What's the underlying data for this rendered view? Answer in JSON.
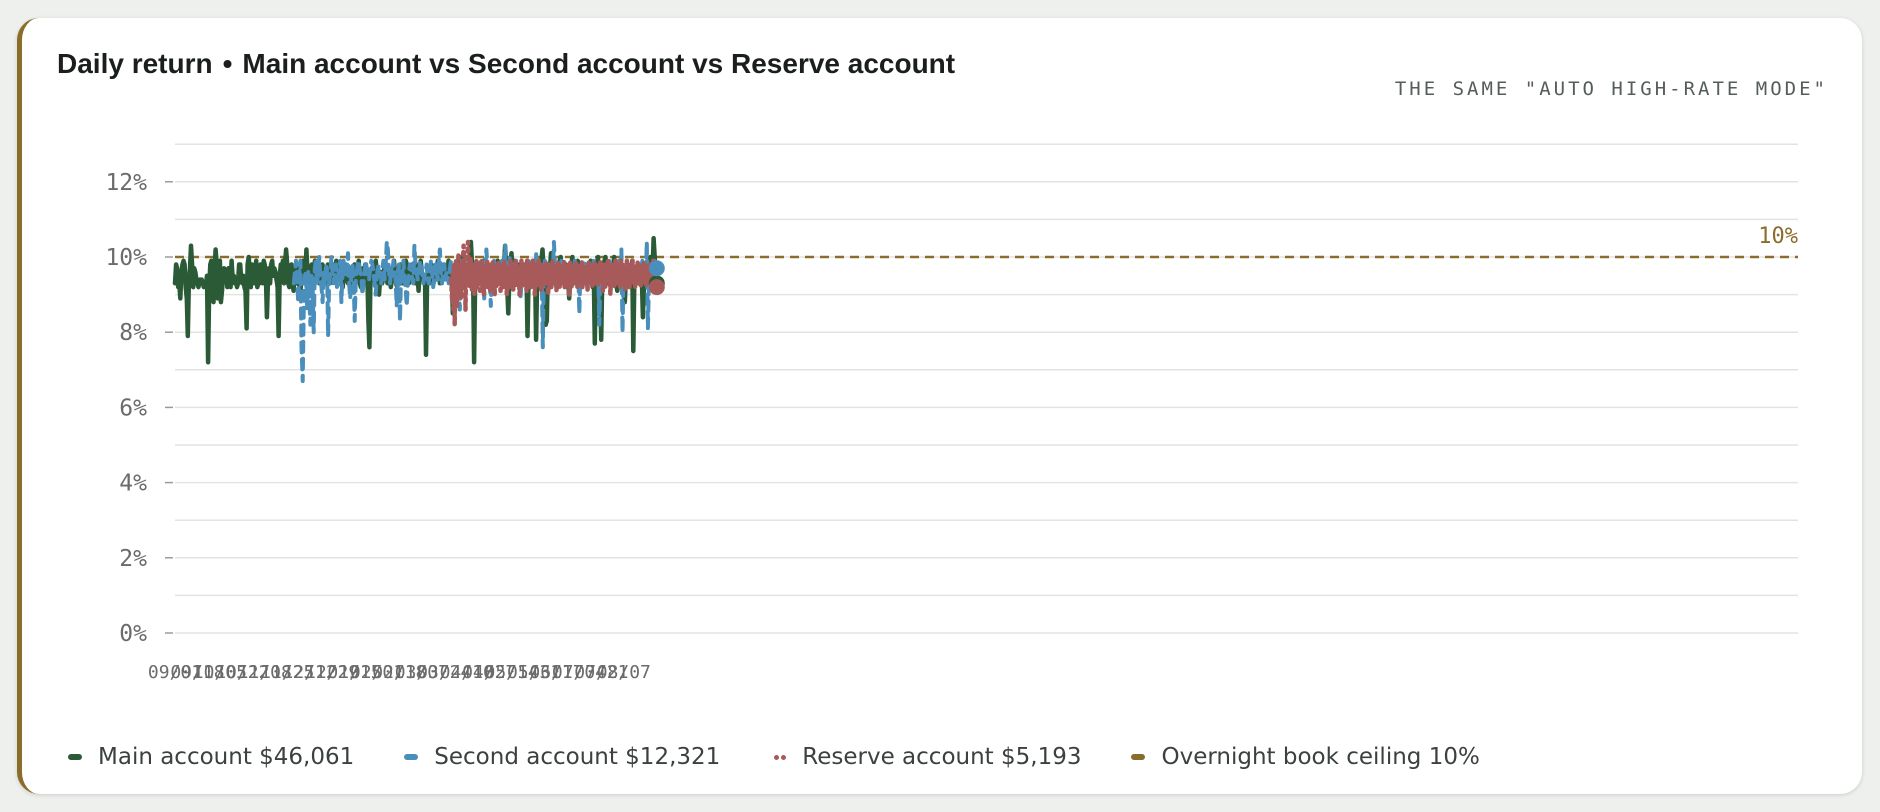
{
  "header": {
    "title": "Daily return",
    "separator": "•",
    "comparison": "Main account vs Second account vs Reserve account",
    "tag": "THE SAME \"AUTO HIGH-RATE MODE\""
  },
  "legend": {
    "items": [
      {
        "label": "Main account $46,061",
        "color": "#2b5a36"
      },
      {
        "label": "Second account $12,321",
        "color": "#4a8fbc"
      },
      {
        "label": "Reserve account $5,193",
        "color": "#a85a5a"
      },
      {
        "label": "Overnight book ceiling 10%",
        "color": "#8a6d2a"
      }
    ]
  },
  "colors": {
    "main": "#2b5a36",
    "second": "#4a8fbc",
    "reserve": "#a85a5a",
    "ceiling": "#8a6d2a",
    "grid": "#e2e4e2",
    "axis_text": "#6b6b6b"
  },
  "chart_data": {
    "type": "line",
    "title": "Daily return • Main account vs Second account vs Reserve account",
    "x_tick_labels": [
      "09/01",
      "09/18",
      "10/05",
      "10/22",
      "11/08",
      "11/25",
      "12/12",
      "12/29",
      "01/15",
      "02/01",
      "02/18",
      "03/07",
      "03/24",
      "04/10",
      "04/27",
      "05/14",
      "05/31",
      "06/17",
      "07/04",
      "07/21",
      "08/07"
    ],
    "y_tick_labels": [
      "0%",
      "2%",
      "4%",
      "6%",
      "8%",
      "10%",
      "12%"
    ],
    "ylim": [
      0,
      13
    ],
    "y_unit": "%",
    "grid": true,
    "legend_position": "bottom",
    "ceiling": {
      "name": "Overnight book ceiling 10%",
      "value": 10,
      "label": "10%"
    },
    "series": [
      {
        "name": "Main account $46,061",
        "start_date": "09/01",
        "values": [
          9.3,
          9.8,
          9.7,
          9.2,
          9.3,
          8.9,
          9.6,
          9.8,
          9.9,
          9.8,
          9.2,
          8.9,
          7.9,
          9.4,
          9.7,
          10.3,
          9.8,
          9.2,
          9.7,
          9.6,
          9.4,
          9.3,
          9.2,
          9.4,
          9.4,
          9.4,
          9.3,
          9.2,
          9.3,
          9.3,
          9.5,
          7.2,
          9.2,
          9.8,
          9.9,
          9.2,
          8.8,
          9.6,
          10.2,
          9.8,
          8.9,
          9.4,
          9.9,
          8.8,
          9.1,
          9.5,
          9.7,
          9.4,
          9.6,
          9.2,
          9.7,
          9.6,
          9.2,
          9.9,
          9.4,
          9.5,
          9.3,
          9.4,
          9.2,
          9.3,
          9.8,
          9.8,
          9.4,
          9.3,
          9.5,
          9.2,
          9.1,
          8.1,
          9.8,
          10.0,
          9.6,
          9.2,
          9.8,
          9.6,
          9.3,
          9.6,
          9.9,
          9.2,
          9.3,
          9.3,
          9.8,
          9.7,
          9.3,
          9.9,
          9.8,
          9.6,
          8.4,
          9.3,
          9.7,
          9.3,
          9.8,
          9.9,
          9.5,
          9.7,
          9.6,
          9.4,
          9.2,
          7.9,
          9.5,
          9.8,
          9.6,
          9.9,
          9.3,
          9.8,
          10.2,
          9.8,
          9.3,
          9.2,
          9.6,
          9.8,
          9.3,
          9.1,
          9.7,
          9.5,
          9.3,
          9.7,
          9.4,
          9.0,
          9.3,
          9.8,
          9.9,
          9.8,
          9.4,
          10.2,
          9.6,
          9.0,
          9.7,
          9.3,
          9.8,
          9.6,
          9.2,
          9.9,
          9.6,
          9.5,
          9.7,
          9.3,
          9.4,
          9.6,
          9.8,
          9.7,
          9.5,
          9.3,
          9.6,
          9.8,
          9.4,
          9.3,
          9.7,
          9.5,
          9.6,
          9.8,
          9.7,
          9.9,
          9.6,
          9.4,
          9.7,
          9.8,
          9.6,
          9.2,
          9.5,
          9.7,
          9.8,
          9.4,
          9.3,
          9.6,
          9.7,
          9.2,
          9.3,
          9.5,
          9.8,
          9.6,
          9.4,
          9.7,
          9.9,
          9.3,
          9.2,
          9.5,
          9.7,
          9.4,
          9.8,
          9.6,
          9.6,
          8.3,
          7.6,
          9.5,
          9.7,
          9.4,
          9.6,
          9.8,
          9.9,
          9.5,
          9.2,
          9.0,
          9.4,
          9.6,
          9.3,
          9.5,
          9.7,
          9.8,
          9.4,
          9.3,
          9.6,
          9.7,
          9.2,
          9.4,
          9.6,
          9.9,
          9.5,
          9.3,
          9.2,
          9.6,
          9.4,
          9.8,
          9.7,
          9.3,
          9.4,
          9.6,
          9.9,
          9.8,
          9.5,
          9.3,
          9.4,
          9.7,
          9.8,
          9.6,
          9.4,
          9.3,
          9.8,
          9.5,
          9.1,
          9.7,
          9.9,
          9.6,
          9.4,
          9.3,
          9.5,
          7.4,
          9.4,
          9.7,
          9.3,
          9.6,
          9.8,
          9.5,
          9.3,
          9.7,
          9.4,
          9.6,
          9.9,
          9.8,
          9.3,
          9.6,
          9.5,
          9.4,
          9.8,
          9.7,
          9.6,
          9.4,
          9.9,
          9.5,
          9.3,
          9.7,
          8.5,
          9.5,
          9.8,
          9.6,
          9.4,
          9.3,
          9.2,
          9.9,
          10.0,
          9.7,
          9.5,
          9.4,
          9.6,
          9.8,
          9.4,
          9.6,
          9.9,
          10.4,
          9.8,
          9.6,
          7.2,
          9.5,
          9.8,
          9.7,
          9.6,
          9.4,
          9.3,
          9.5,
          9.8,
          9.9,
          9.6,
          9.4,
          9.7,
          9.5,
          9.3,
          9.4,
          9.6,
          9.8,
          9.5,
          9.3,
          9.4,
          9.6,
          9.9,
          9.8,
          9.7,
          9.5,
          9.6,
          9.3,
          9.7,
          10.3,
          9.8,
          9.2,
          8.5,
          9.5,
          9.8,
          10.1,
          9.4,
          9.6,
          9.9,
          9.5,
          9.3,
          9.7,
          9.8,
          9.6,
          9.4,
          9.5,
          9.7,
          9.8,
          9.3,
          9.6,
          7.9,
          9.5,
          9.8,
          9.2,
          9.6,
          9.9,
          9.4,
          9.7,
          7.8,
          9.5,
          9.4,
          9.8,
          9.6,
          9.9,
          10.2,
          9.7,
          9.5,
          8.2,
          8.3,
          9.6,
          9.8,
          9.7,
          10.1,
          9.9,
          10.0,
          9.7,
          9.5,
          9.8,
          9.4,
          9.6,
          9.9,
          10.0,
          9.7,
          9.5,
          9.3,
          9.6,
          9.8,
          9.7,
          9.4,
          8.9,
          9.5,
          9.8,
          10.0,
          9.6,
          9.3,
          9.4,
          9.7,
          9.9,
          9.8,
          9.5,
          9.6,
          9.3,
          9.7,
          9.5,
          9.4,
          9.6,
          9.8,
          9.7,
          9.5,
          9.9,
          9.3,
          9.2,
          9.5,
          7.7,
          9.6,
          9.8,
          10.0,
          9.4,
          9.2,
          7.8,
          9.5,
          9.7,
          9.9,
          10.0,
          9.6,
          9.3,
          9.5,
          9.8,
          9.7,
          9.4,
          9.6,
          10.0,
          9.5,
          9.3,
          9.1,
          9.4,
          9.6,
          9.8,
          9.5,
          9.7,
          9.3,
          8.8,
          9.4,
          9.6,
          9.8,
          9.7,
          9.5,
          9.4,
          9.9,
          7.5,
          9.5,
          9.7,
          9.6,
          9.3,
          9.8,
          9.4,
          9.6,
          9.5,
          8.4,
          9.3,
          9.6,
          9.8,
          9.4,
          9.7,
          9.9,
          10.0,
          9.6,
          9.5,
          10.5,
          10.0,
          9.3,
          9.3
        ]
      },
      {
        "name": "Second account $12,321",
        "start_date": "11/30",
        "values": [
          9.3,
          9.6,
          9.9,
          9.5,
          8.8,
          9.6,
          9.9,
          7.6,
          6.7,
          8.7,
          9.5,
          9.6,
          8.6,
          9.6,
          8.9,
          8.2,
          9.5,
          9.2,
          8.0,
          9.7,
          9.9,
          9.3,
          9.6,
          10.0,
          9.4,
          9.2,
          8.8,
          9.6,
          9.3,
          9.7,
          9.8,
          7.9,
          9.4,
          9.5,
          10.0,
          9.6,
          9.3,
          9.4,
          9.8,
          9.2,
          9.5,
          9.7,
          9.9,
          8.8,
          9.6,
          9.9,
          9.6,
          9.5,
          9.7,
          10.1,
          9.3,
          8.9,
          9.5,
          9.8,
          9.4,
          8.3,
          9.4,
          9.6,
          9.9,
          9.8,
          9.6,
          9.5,
          9.0,
          9.3,
          9.6,
          9.9,
          9.7,
          9.4,
          9.4,
          9.7,
          9.9,
          9.8,
          9.6,
          9.3,
          9.0,
          9.4,
          9.8,
          9.6,
          9.5,
          9.3,
          9.7,
          9.9,
          9.4,
          9.8,
          10.4,
          10.2,
          9.6,
          9.3,
          9.7,
          9.5,
          9.9,
          9.6,
          9.4,
          8.7,
          9.6,
          9.8,
          8.3,
          9.7,
          9.5,
          9.9,
          9.4,
          9.2,
          8.7,
          9.3,
          9.6,
          9.8,
          9.7,
          9.4,
          9.3,
          10.3,
          9.8,
          9.6,
          9.4,
          9.5,
          9.9,
          9.7,
          9.6,
          9.3,
          9.5,
          9.6,
          9.8,
          9.4,
          9.3,
          9.7,
          9.9,
          9.6,
          9.2,
          9.5,
          9.8,
          9.6,
          9.4,
          9.9,
          10.2,
          9.5,
          9.3,
          9.7,
          9.8,
          9.4,
          9.6,
          9.5,
          9.3,
          9.7,
          9.9,
          9.6,
          9.4,
          9.5,
          9.8,
          9.7,
          9.6,
          9.4,
          8.6,
          9.7,
          9.9,
          9.6,
          9.3,
          9.5,
          9.8,
          9.7,
          9.4,
          9.6,
          9.9,
          9.8,
          9.3,
          9.5,
          9.7,
          9.6,
          9.4,
          9.8,
          9.9,
          9.5,
          9.3,
          9.6,
          8.9,
          9.8,
          10.2,
          9.7,
          9.3,
          9.5,
          8.7,
          9.6,
          9.8,
          9.9,
          9.5,
          9.4,
          9.7,
          9.6,
          9.3,
          9.8,
          9.9,
          9.6,
          9.2,
          10.3,
          9.8,
          9.5,
          9.6,
          10.0,
          9.4,
          9.6,
          9.8,
          9.3,
          9.7,
          9.9,
          9.4,
          9.5,
          9.6,
          8.9,
          9.8,
          9.7,
          9.6,
          9.4,
          9.3,
          9.7,
          9.9,
          9.8,
          9.5,
          9.4,
          9.6,
          9.7,
          9.3,
          10.1,
          9.6,
          9.5,
          9.8,
          9.4,
          9.6,
          7.6,
          9.7,
          9.9,
          9.5,
          9.4,
          9.6,
          9.8,
          9.7,
          9.3,
          9.5,
          10.4,
          9.8,
          9.4,
          9.7,
          9.6,
          9.3,
          9.5,
          9.9,
          9.8,
          9.6,
          9.4,
          9.7,
          9.5,
          9.3,
          9.6,
          9.8,
          9.7,
          9.4,
          9.6,
          9.9,
          9.5,
          9.3,
          9.7,
          8.5,
          9.6,
          9.8,
          9.4,
          9.7,
          9.9,
          9.6,
          9.3,
          9.5,
          9.8,
          9.6,
          9.4,
          9.7,
          9.9,
          9.5,
          9.3,
          9.6,
          9.8,
          8.2,
          9.4,
          9.7,
          9.5,
          9.3,
          9.8,
          9.6,
          9.4,
          9.7,
          9.9,
          9.5,
          9.6,
          9.3,
          9.7,
          9.8,
          9.6,
          9.4,
          9.5,
          9.9,
          9.7,
          10.2,
          8.0,
          9.6,
          9.8,
          9.4,
          9.3,
          9.5,
          9.7,
          9.6,
          9.8,
          9.4,
          9.6,
          9.7,
          9.5,
          9.3,
          9.8,
          9.6,
          9.4,
          9.7,
          9.9,
          9.5,
          9.6,
          9.4,
          10.4,
          8.1,
          9.5,
          9.8,
          9.6,
          9.3,
          9.7,
          9.9,
          9.7,
          9.7
        ]
      },
      {
        "name": "Reserve account $5,193",
        "start_date": "03/29",
        "values": [
          9.4,
          9.2,
          8.8,
          9.6,
          8.6,
          9.8,
          8.2,
          9.5,
          9.9,
          9.3,
          8.7,
          9.6,
          10.1,
          9.4,
          9.0,
          9.7,
          8.9,
          9.8,
          9.3,
          9.9,
          10.3,
          9.5,
          9.8,
          8.6,
          9.7,
          9.3,
          9.9,
          10.4,
          9.6,
          9.2,
          9.5,
          10.0,
          9.4,
          9.1,
          9.8,
          9.6,
          9.3,
          9.0,
          9.7,
          9.4,
          9.9,
          9.2,
          9.5,
          9.8,
          9.3,
          9.6,
          9.1,
          9.7,
          9.9,
          9.4,
          9.2,
          9.6,
          9.0,
          9.8,
          9.5,
          9.3,
          9.7,
          9.9,
          9.2,
          9.4,
          9.8,
          9.6,
          9.1,
          9.5,
          9.7,
          9.3,
          9.9,
          9.4,
          9.6,
          9.0,
          9.8,
          9.5,
          9.2,
          9.7,
          9.4,
          9.9,
          9.3,
          9.6,
          9.1,
          9.8,
          9.5,
          9.7,
          9.2,
          9.4,
          9.9,
          9.6,
          9.3,
          9.8,
          9.0,
          9.5,
          9.7,
          9.4,
          9.2,
          9.6,
          9.9,
          9.3,
          9.8,
          9.5,
          9.1,
          9.7,
          9.4,
          9.6,
          9.9,
          9.2,
          9.5,
          9.8,
          9.3,
          9.7,
          9.0,
          9.4,
          9.6,
          9.9,
          9.5,
          9.2,
          9.8,
          9.3,
          9.6,
          9.4,
          9.7,
          9.1,
          9.9,
          9.5,
          9.3,
          9.6,
          9.8,
          9.2,
          9.4,
          9.7,
          9.5,
          9.9,
          9.3,
          9.6,
          9.0,
          9.8,
          9.4,
          9.7,
          9.2,
          9.5,
          9.9,
          9.3,
          9.6,
          9.8,
          9.1,
          9.4,
          9.7,
          9.5,
          9.2,
          9.8,
          9.6,
          9.3,
          9.9,
          9.4,
          9.7,
          9.0,
          9.5,
          9.8,
          9.3,
          9.6,
          9.2,
          9.4,
          9.9,
          9.7,
          9.5,
          9.3,
          9.8,
          9.6,
          9.1,
          9.4,
          9.7,
          9.9,
          9.5,
          9.2,
          9.6,
          9.8,
          9.3,
          9.4,
          9.7,
          9.5,
          9.9,
          9.2,
          9.6,
          9.4,
          9.8,
          9.3,
          9.7,
          9.5,
          9.0,
          9.6,
          9.9,
          9.4,
          9.2,
          9.8,
          9.5,
          9.7,
          9.3,
          9.6,
          9.4,
          9.9,
          9.5,
          9.2,
          9.7,
          9.6,
          9.3,
          9.8,
          9.4,
          9.5,
          9.9,
          9.2,
          9.7,
          9.6,
          9.3,
          9.4,
          9.8,
          9.5,
          9.7,
          9.1,
          9.6,
          9.9,
          9.4,
          9.3,
          9.8,
          9.5,
          9.6,
          9.2,
          9.7,
          9.4,
          9.9,
          9.5,
          9.3,
          9.6,
          9.8,
          9.2,
          9.5,
          9.7,
          9.4,
          9.9,
          9.3,
          9.6,
          9.8,
          9.1,
          9.4,
          9.7,
          9.5,
          9.2,
          9.8,
          9.6,
          9.3,
          9.9,
          9.4,
          9.7,
          9.5,
          9.0,
          9.6,
          9.8,
          9.3,
          9.4,
          9.7,
          9.2,
          9.5,
          9.9,
          9.6,
          9.3,
          9.8,
          9.4,
          9.7,
          9.5,
          9.2,
          9.6,
          9.9,
          9.3,
          9.4,
          9.8,
          9.5,
          9.7,
          9.1,
          9.6,
          9.4,
          9.9,
          9.3,
          9.5,
          9.8,
          9.2,
          9.7,
          9.6,
          9.4,
          9.3,
          9.9,
          9.5,
          9.8,
          9.6,
          9.2,
          9.4,
          9.7,
          9.5,
          9.9,
          9.3,
          9.6,
          9.8,
          9.4,
          9.2,
          9.7,
          9.5,
          9.3,
          9.6,
          9.9,
          9.4,
          9.8,
          9.2,
          9.5,
          9.7,
          9.6,
          9.3,
          9.4,
          9.8,
          9.5,
          9.7,
          9.2,
          9.6,
          9.9,
          9.4,
          9.3,
          9.5,
          9.7,
          9.2,
          9.2
        ]
      }
    ]
  }
}
